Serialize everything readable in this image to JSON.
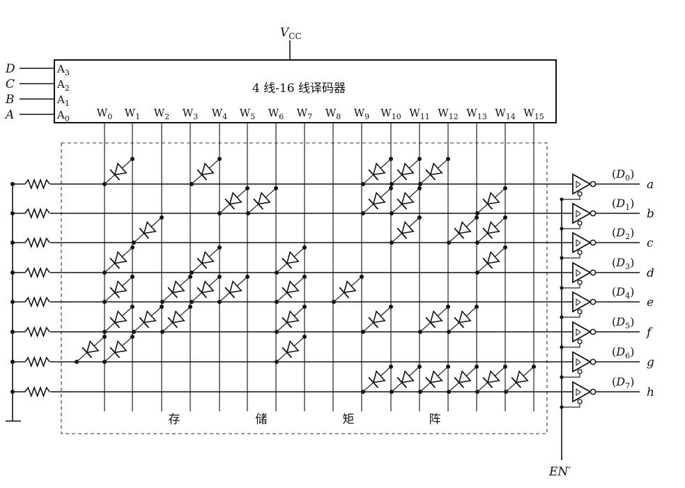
{
  "vcc": {
    "main": "V",
    "sub": "CC"
  },
  "decoder_title": "4 线-16 线译码器",
  "inputs": [
    {
      "ext": "D",
      "pin": "A",
      "idx": "3"
    },
    {
      "ext": "C",
      "pin": "A",
      "idx": "2"
    },
    {
      "ext": "B",
      "pin": "A",
      "idx": "1"
    },
    {
      "ext": "A",
      "pin": "A",
      "idx": "0"
    }
  ],
  "word_lines": [
    "0",
    "1",
    "2",
    "3",
    "4",
    "5",
    "6",
    "7",
    "8",
    "9",
    "10",
    "11",
    "12",
    "13",
    "14",
    "15"
  ],
  "word_prefix": "W",
  "outputs": [
    {
      "name": "a",
      "data": "D",
      "idx": "0"
    },
    {
      "name": "b",
      "data": "D",
      "idx": "1"
    },
    {
      "name": "c",
      "data": "D",
      "idx": "2"
    },
    {
      "name": "d",
      "data": "D",
      "idx": "3"
    },
    {
      "name": "e",
      "data": "D",
      "idx": "4"
    },
    {
      "name": "f",
      "data": "D",
      "idx": "5"
    },
    {
      "name": "g",
      "data": "D",
      "idx": "6"
    },
    {
      "name": "h",
      "data": "D",
      "idx": "7"
    }
  ],
  "diodes": [
    {
      "row": 0,
      "col": 1
    },
    {
      "row": 0,
      "col": 4
    },
    {
      "row": 0,
      "col": 10
    },
    {
      "row": 0,
      "col": 11
    },
    {
      "row": 0,
      "col": 12
    },
    {
      "row": 1,
      "col": 5
    },
    {
      "row": 1,
      "col": 6
    },
    {
      "row": 1,
      "col": 10
    },
    {
      "row": 1,
      "col": 11
    },
    {
      "row": 1,
      "col": 14
    },
    {
      "row": 2,
      "col": 2
    },
    {
      "row": 2,
      "col": 11
    },
    {
      "row": 2,
      "col": 13
    },
    {
      "row": 2,
      "col": 14
    },
    {
      "row": 3,
      "col": 1
    },
    {
      "row": 3,
      "col": 4
    },
    {
      "row": 3,
      "col": 7
    },
    {
      "row": 3,
      "col": 14
    },
    {
      "row": 4,
      "col": 1
    },
    {
      "row": 4,
      "col": 3
    },
    {
      "row": 4,
      "col": 4
    },
    {
      "row": 4,
      "col": 5
    },
    {
      "row": 4,
      "col": 7
    },
    {
      "row": 4,
      "col": 9
    },
    {
      "row": 5,
      "col": 1
    },
    {
      "row": 5,
      "col": 2
    },
    {
      "row": 5,
      "col": 3
    },
    {
      "row": 5,
      "col": 7
    },
    {
      "row": 5,
      "col": 10
    },
    {
      "row": 5,
      "col": 12
    },
    {
      "row": 5,
      "col": 13
    },
    {
      "row": 6,
      "col": 0
    },
    {
      "row": 6,
      "col": 1
    },
    {
      "row": 6,
      "col": 7
    },
    {
      "row": 7,
      "col": 10
    },
    {
      "row": 7,
      "col": 11
    },
    {
      "row": 7,
      "col": 12
    },
    {
      "row": 7,
      "col": 13
    },
    {
      "row": 7,
      "col": 14
    },
    {
      "row": 7,
      "col": 15
    }
  ],
  "matrix_label": [
    "存",
    "储",
    "矩",
    "阵"
  ],
  "enable": {
    "main": "EN",
    "prime": "′"
  }
}
